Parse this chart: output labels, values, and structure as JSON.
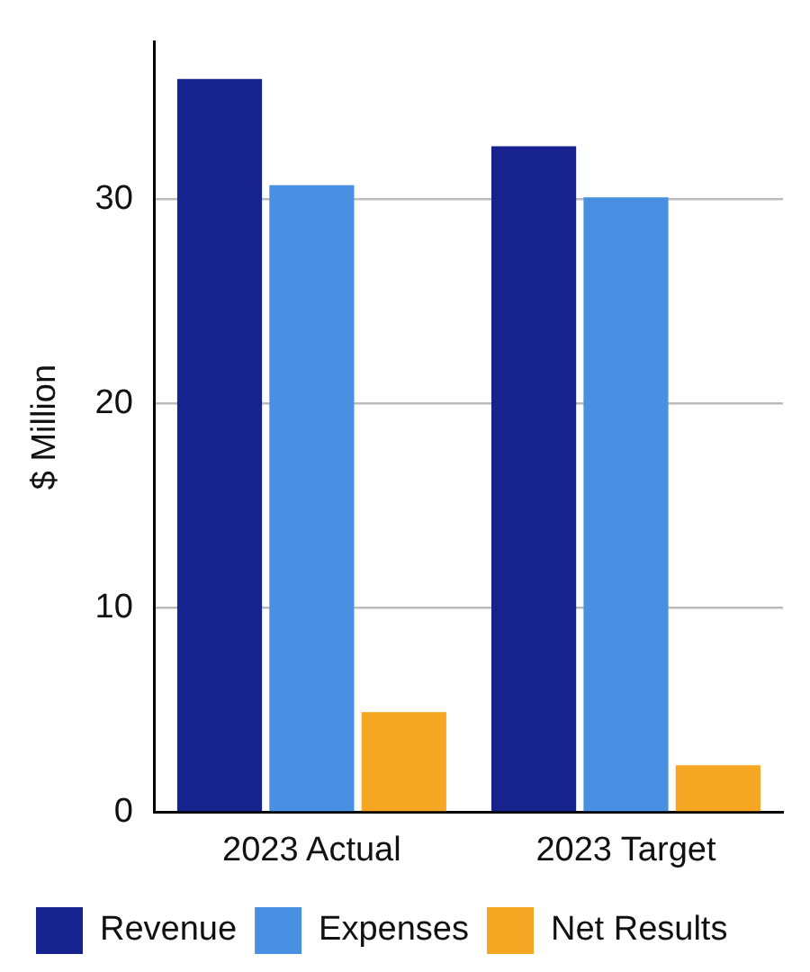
{
  "chart_data": {
    "type": "bar",
    "ylabel": "$ Million",
    "categories": [
      "2023 Actual",
      "2023 Target"
    ],
    "series": [
      {
        "name": "Revenue",
        "color": "#16228e",
        "values": [
          35.9,
          32.6
        ]
      },
      {
        "name": "Expenses",
        "color": "#4a90e2",
        "values": [
          30.7,
          30.1
        ]
      },
      {
        "name": "Net Results",
        "color": "#f5a623",
        "values": [
          4.9,
          2.3
        ]
      }
    ],
    "ylim": [
      0,
      37.7
    ],
    "yticks": [
      0,
      10,
      20,
      30
    ],
    "grid": "y",
    "legend": "bottom"
  }
}
